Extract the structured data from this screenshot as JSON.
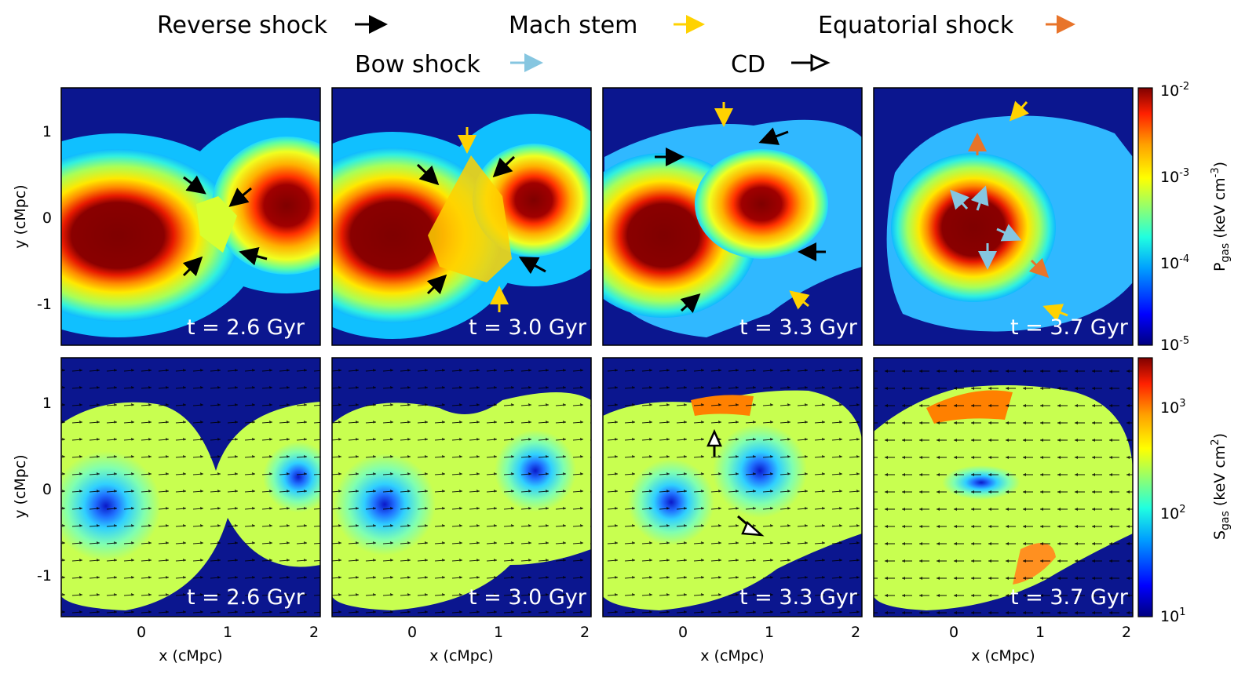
{
  "legend": {
    "reverse_shock": {
      "label": "Reverse shock",
      "color": "#000000"
    },
    "mach_stem": {
      "label": "Mach stem",
      "color": "#ffd200"
    },
    "equatorial_shock": {
      "label": "Equatorial shock",
      "color": "#e8742a"
    },
    "bow_shock": {
      "label": "Bow shock",
      "color": "#86c6e0"
    },
    "cd": {
      "label": "CD",
      "color": "#000000"
    }
  },
  "axes": {
    "xlabel": "x (cMpc)",
    "ylabel": "y (cMpc)",
    "xticks": [
      "0",
      "1",
      "2"
    ],
    "yticks": [
      "1",
      "0",
      "-1"
    ]
  },
  "rows": [
    {
      "quantity": "pressure",
      "cbar": {
        "label_main": "P",
        "label_sub": "gas",
        "label_unit": " (keV cm",
        "label_exp": "-3",
        "label_close": ")",
        "ticks": [
          {
            "base": "10",
            "exp": "-2"
          },
          {
            "base": "10",
            "exp": "-3"
          },
          {
            "base": "10",
            "exp": "-4"
          },
          {
            "base": "10",
            "exp": "-5"
          }
        ]
      }
    },
    {
      "quantity": "entropy",
      "cbar": {
        "label_main": "S",
        "label_sub": "gas",
        "label_unit": " (keV cm",
        "label_exp": "2",
        "label_close": ")",
        "ticks": [
          {
            "base": "10",
            "exp": "3"
          },
          {
            "base": "10",
            "exp": "2"
          },
          {
            "base": "10",
            "exp": "1"
          }
        ]
      }
    }
  ],
  "times": [
    "t = 2.6 Gyr",
    "t = 3.0 Gyr",
    "t = 3.3 Gyr",
    "t = 3.7 Gyr"
  ],
  "colors": {
    "background": "#0b168f",
    "colormap": [
      "#00007f",
      "#0000ff",
      "#00b0ff",
      "#20ffd0",
      "#a0ff60",
      "#ffff00",
      "#ffa000",
      "#ff2000",
      "#7f0000"
    ]
  }
}
